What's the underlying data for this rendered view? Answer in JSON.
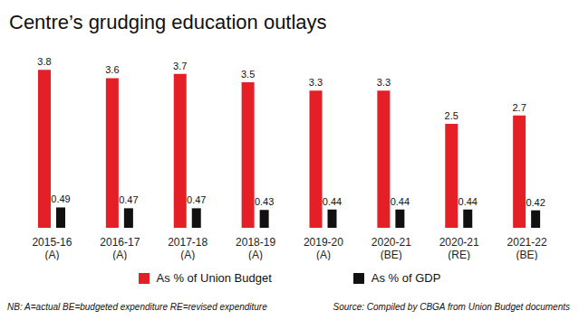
{
  "chart_data": {
    "type": "bar",
    "title": "Centre’s grudging education outlays",
    "categories": [
      "2015-16 (A)",
      "2016-17 (A)",
      "2017-18 (A)",
      "2018-19 (A)",
      "2019-20 (A)",
      "2020-21 (BE)",
      "2020-21 (RE)",
      "2021-22 (BE)"
    ],
    "series": [
      {
        "name": "As % of Union Budget",
        "color": "#e41f26",
        "values": [
          3.8,
          3.6,
          3.7,
          3.5,
          3.3,
          3.3,
          2.5,
          2.7
        ]
      },
      {
        "name": "As % of GDP",
        "color": "#111111",
        "values": [
          0.49,
          0.47,
          0.47,
          0.43,
          0.44,
          0.44,
          0.44,
          0.42
        ]
      }
    ],
    "ylim": [
      0,
      4
    ],
    "data_labels": true,
    "tick_labels": "x",
    "legend": "bottom",
    "grid": false,
    "note": "NB: A=actual BE=budgeted expenditure RE=revised expenditure",
    "source": "Source: Compiled by CBGA from Union Budget documents"
  }
}
